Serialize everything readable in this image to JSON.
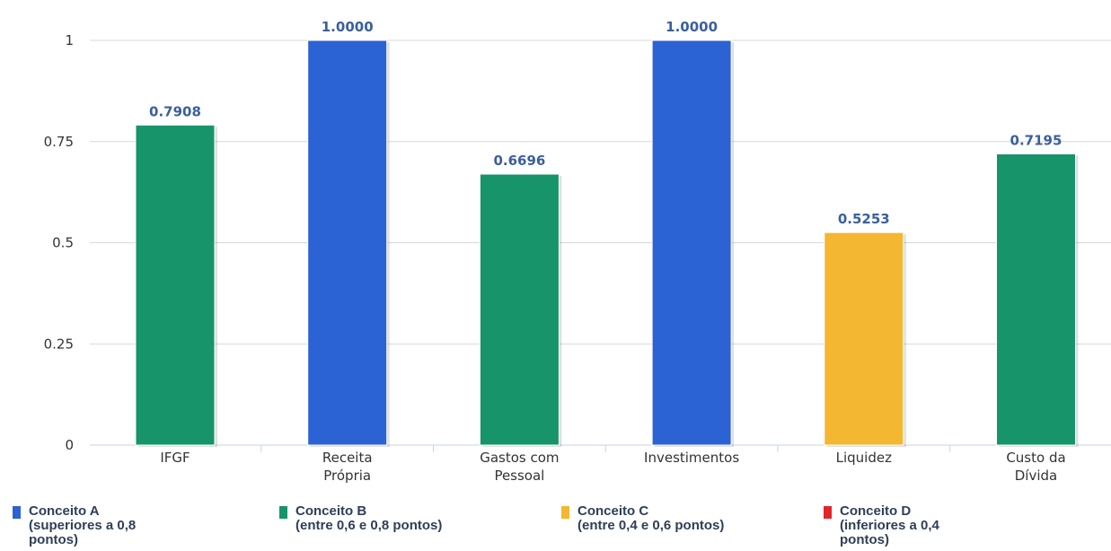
{
  "chart_data": {
    "type": "bar",
    "categories": [
      [
        "IFGF"
      ],
      [
        "Receita",
        "Própria"
      ],
      [
        "Gastos com",
        "Pessoal"
      ],
      [
        "Investimentos"
      ],
      [
        "Liquidez"
      ],
      [
        "Custo da",
        "Dívida"
      ]
    ],
    "values": [
      0.7908,
      1.0,
      0.6696,
      1.0,
      0.5253,
      0.7195
    ],
    "data_labels": [
      "0.7908",
      "1.0000",
      "0.6696",
      "1.0000",
      "0.5253",
      "0.7195"
    ],
    "bar_concept": [
      "B",
      "A",
      "B",
      "A",
      "C",
      "B"
    ],
    "yticks": [
      "0",
      "0.25",
      "0.5",
      "0.75",
      "1"
    ],
    "ylim": [
      0,
      1
    ],
    "grid": true,
    "legend_position": "bottom"
  },
  "legend": [
    {
      "id": "A",
      "lines": [
        "Conceito A",
        "(superiores a 0,8",
        "pontos)"
      ],
      "color": "#2b62d4"
    },
    {
      "id": "B",
      "lines": [
        "Conceito B",
        "(entre 0,6 e 0,8 pontos)"
      ],
      "color": "#17946a"
    },
    {
      "id": "C",
      "lines": [
        "Conceito C",
        "(entre 0,4 e 0,6 pontos)"
      ],
      "color": "#f4b731"
    },
    {
      "id": "D",
      "lines": [
        "Conceito D",
        "(inferiores a 0,4",
        "pontos)"
      ],
      "color": "#e0252b"
    }
  ]
}
